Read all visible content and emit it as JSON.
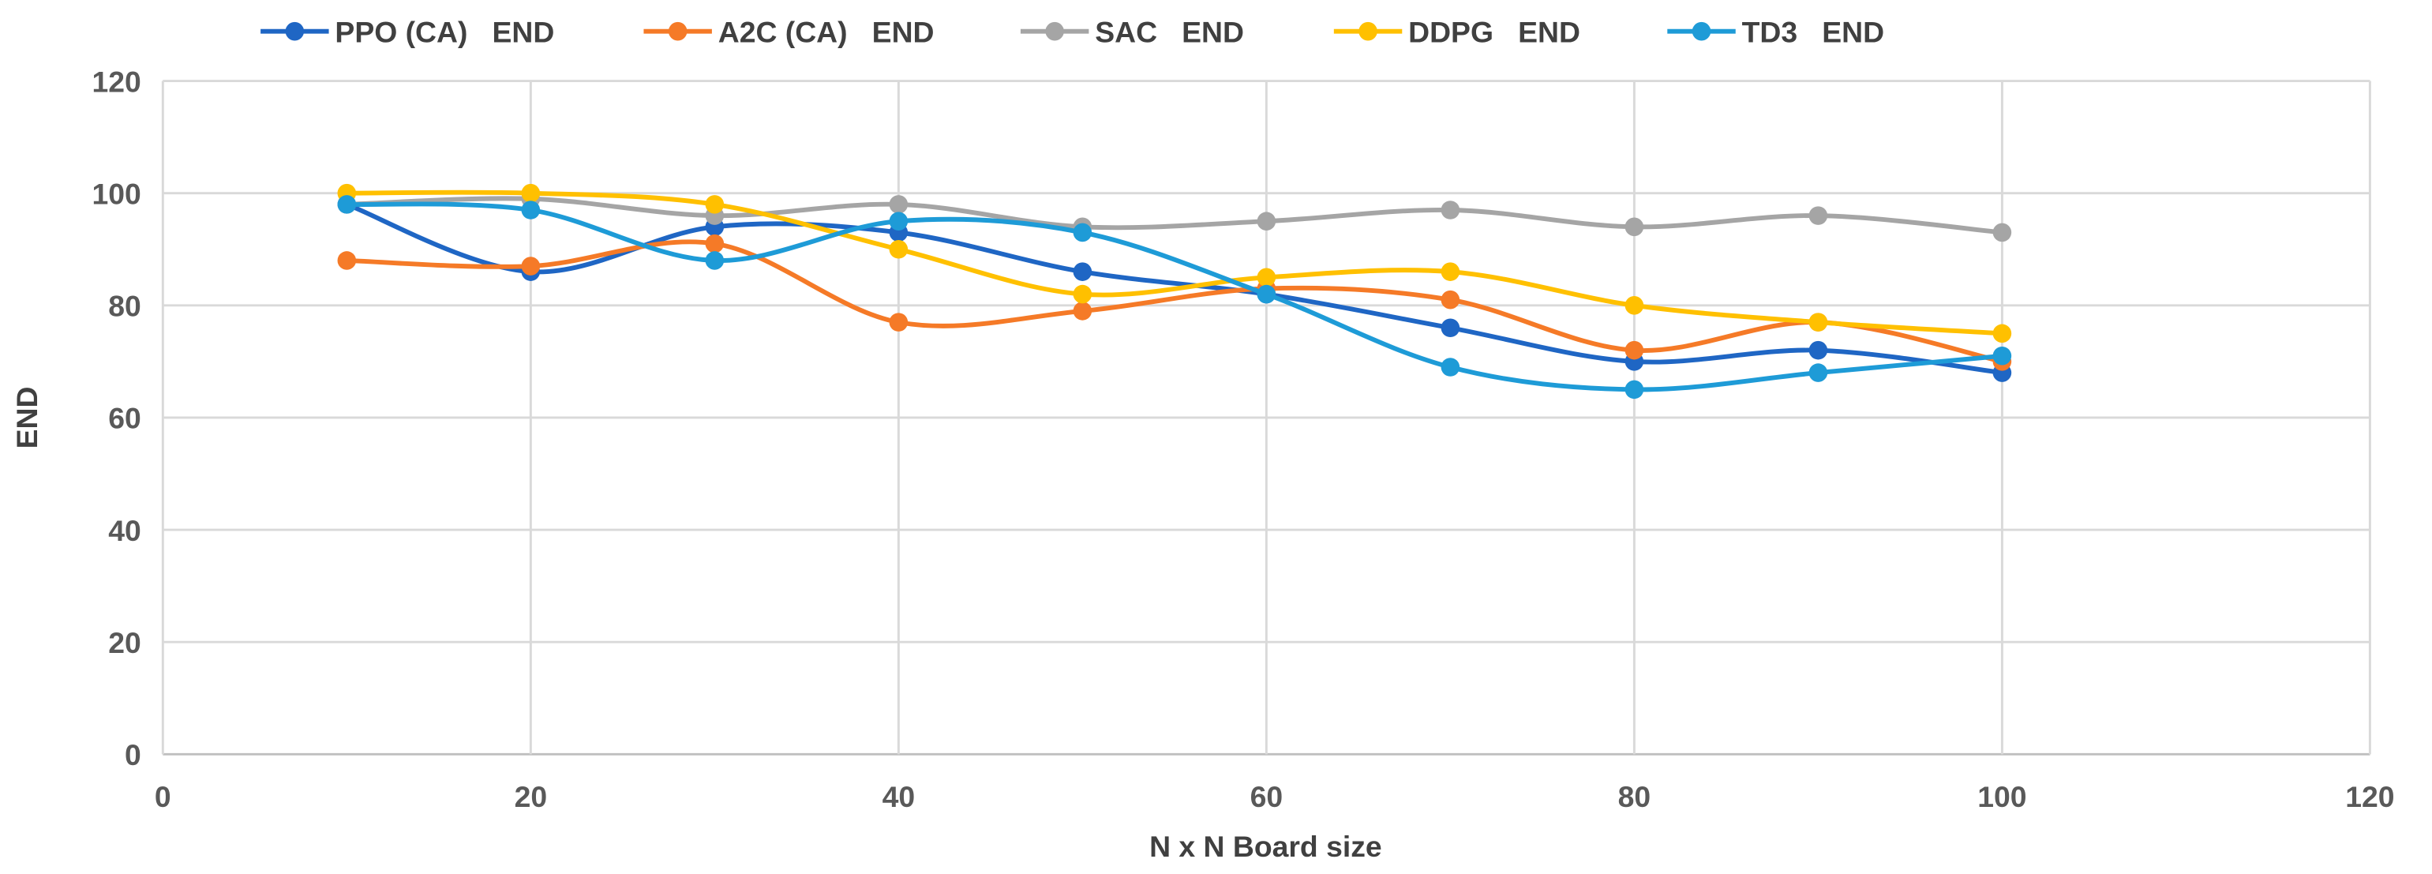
{
  "chart_data": {
    "type": "line",
    "title": "",
    "xlabel": "N x N Board size",
    "ylabel": "END",
    "xlim": [
      0,
      120
    ],
    "ylim": [
      0,
      120
    ],
    "xticks": [
      0,
      20,
      40,
      60,
      80,
      100,
      120
    ],
    "yticks": [
      0,
      20,
      40,
      60,
      80,
      100,
      120
    ],
    "grid": true,
    "smooth": true,
    "legend_position": "top",
    "x": [
      10,
      20,
      30,
      40,
      50,
      60,
      70,
      80,
      90,
      100
    ],
    "series": [
      {
        "name": "PPO (CA)   END",
        "color": "#1F66C4",
        "values": [
          98,
          86,
          94,
          93,
          86,
          82,
          76,
          70,
          72,
          68
        ]
      },
      {
        "name": "A2C (CA)   END",
        "color": "#F57A27",
        "values": [
          88,
          87,
          91,
          77,
          79,
          83,
          81,
          72,
          77,
          70
        ]
      },
      {
        "name": "SAC   END",
        "color": "#A5A5A5",
        "values": [
          98,
          99,
          96,
          98,
          94,
          95,
          97,
          94,
          96,
          93
        ]
      },
      {
        "name": "DDPG   END",
        "color": "#FFC000",
        "values": [
          100,
          100,
          98,
          90,
          82,
          85,
          86,
          80,
          77,
          75
        ]
      },
      {
        "name": "TD3   END",
        "color": "#1E9BD7",
        "values": [
          98,
          97,
          88,
          95,
          93,
          82,
          69,
          65,
          68,
          71
        ]
      }
    ]
  }
}
